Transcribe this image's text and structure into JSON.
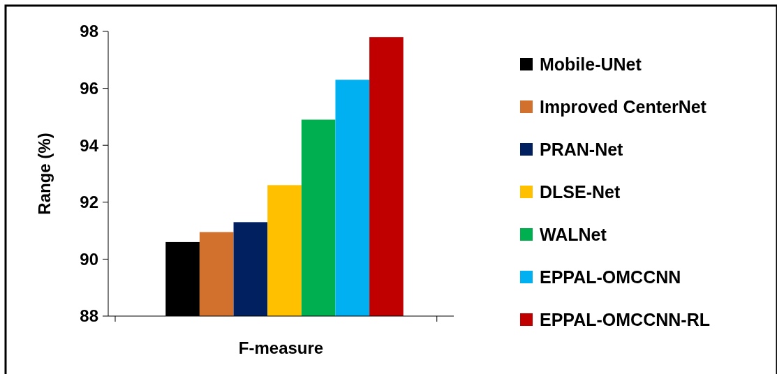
{
  "chart_data": {
    "type": "bar",
    "xlabel": "F-measure",
    "ylabel": "Range (%)",
    "categories": [
      null
    ],
    "ylim": [
      88,
      98
    ],
    "yticks": [
      88,
      90,
      92,
      94,
      96,
      98
    ],
    "legend": "right",
    "grid": false,
    "series": [
      {
        "name": "Mobile-UNet",
        "color": "#000000",
        "values": [
          90.6
        ]
      },
      {
        "name": "Improved CenterNet",
        "color": "#d2712e",
        "values": [
          90.95
        ]
      },
      {
        "name": "PRAN-Net",
        "color": "#002060",
        "values": [
          91.3
        ]
      },
      {
        "name": "DLSE-Net",
        "color": "#ffc000",
        "values": [
          92.6
        ]
      },
      {
        "name": "WALNet",
        "color": "#00b050",
        "values": [
          94.9
        ]
      },
      {
        "name": "EPPAL-OMCCNN",
        "color": "#00b0f0",
        "values": [
          96.3
        ]
      },
      {
        "name": "EPPAL-OMCCNN-RL",
        "color": "#c00000",
        "values": [
          97.8
        ]
      }
    ]
  }
}
